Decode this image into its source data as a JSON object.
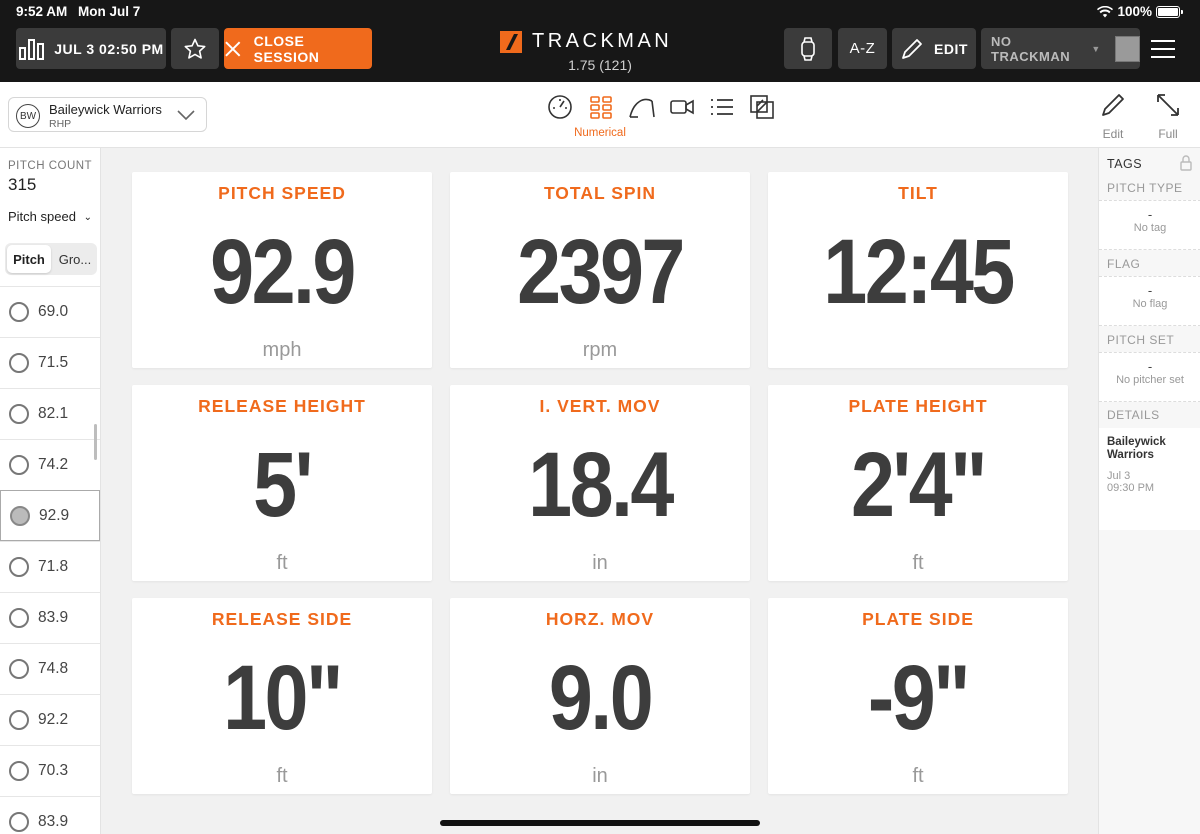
{
  "status_bar": {
    "time": "9:52 AM",
    "date": "Mon Jul 7",
    "battery": "100%"
  },
  "toolbar": {
    "session_label": "JUL 3 02:50 PM",
    "close_label": "CLOSE SESSION",
    "logo_text": "TRACKMAN",
    "version": "1.75 (121)",
    "az_label": "A-Z",
    "edit_label": "EDIT",
    "device_label": "NO TRACKMAN",
    "accent_color": "#f06a1c"
  },
  "subbar": {
    "team_badge": "BW",
    "team_name": "Baileywick Warriors",
    "handedness": "RHP",
    "active_view": "Numerical",
    "edit_label": "Edit",
    "full_label": "Full"
  },
  "sidebar": {
    "pitch_count_label": "PITCH COUNT",
    "pitch_count": "315",
    "metric_select": "Pitch speed",
    "segment_a": "Pitch",
    "segment_b": "Gro...",
    "pitches": [
      "69.0",
      "71.5",
      "82.1",
      "74.2",
      "92.9",
      "71.8",
      "83.9",
      "74.8",
      "92.2",
      "70.3",
      "83.9"
    ],
    "selected_index": 4
  },
  "tiles": [
    {
      "title": "PITCH SPEED",
      "value": "92.9",
      "unit": "mph"
    },
    {
      "title": "TOTAL SPIN",
      "value": "2397",
      "unit": "rpm"
    },
    {
      "title": "TILT",
      "value": "12:45",
      "unit": ""
    },
    {
      "title": "RELEASE HEIGHT",
      "value": "5'",
      "unit": "ft"
    },
    {
      "title": "I. VERT. MOV",
      "value": "18.4",
      "unit": "in"
    },
    {
      "title": "PLATE HEIGHT",
      "value": "2'4\"",
      "unit": "ft"
    },
    {
      "title": "RELEASE SIDE",
      "value": "10\"",
      "unit": "ft"
    },
    {
      "title": "HORZ. MOV",
      "value": "9.0",
      "unit": "in"
    },
    {
      "title": "PLATE SIDE",
      "value": "-9\"",
      "unit": "ft"
    }
  ],
  "right_panel": {
    "tags_label": "TAGS",
    "pitch_type_label": "PITCH TYPE",
    "pitch_type_value": "-",
    "pitch_type_sub": "No tag",
    "flag_label": "FLAG",
    "flag_value": "-",
    "flag_sub": "No flag",
    "pitch_set_label": "PITCH SET",
    "pitch_set_value": "-",
    "pitch_set_sub": "No pitcher set",
    "details_label": "DETAILS",
    "details_team": "Baileywick Warriors",
    "details_date": "Jul 3",
    "details_time": "09:30 PM"
  }
}
